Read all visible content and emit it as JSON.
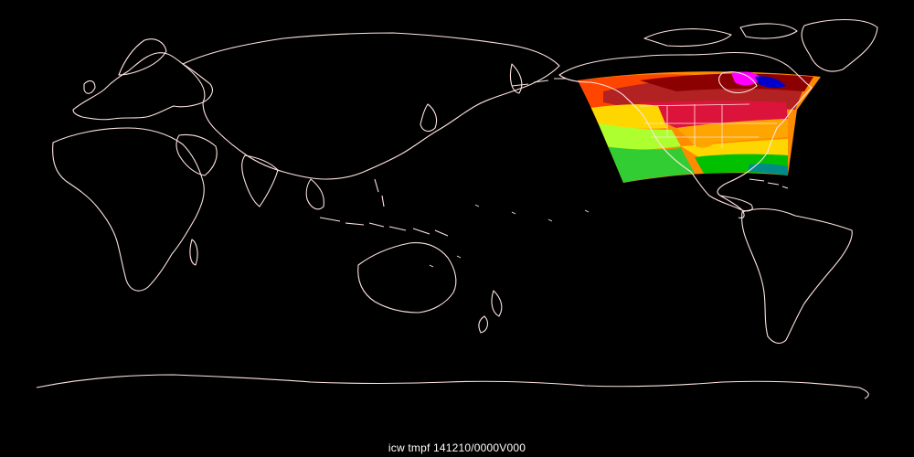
{
  "map": {
    "label": "icw tmpf 141210/0000V000",
    "background_color": "#000000",
    "coastline_color": "#ffe4e1",
    "overlay_palette": [
      "#ff00ff",
      "#0000cd",
      "#8b0000",
      "#b22222",
      "#dc143c",
      "#ff4500",
      "#ff8c00",
      "#ffa500",
      "#ffd700",
      "#adff2f",
      "#32cd32",
      "#00c000",
      "#008b8b"
    ]
  }
}
